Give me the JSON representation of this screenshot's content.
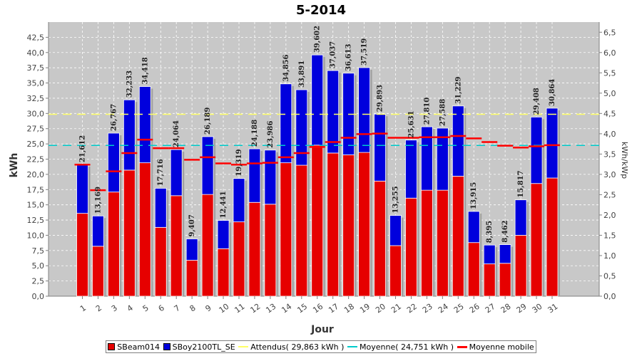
{
  "chart_data": {
    "type": "bar",
    "title": "5-2014",
    "xlabel": "Jour",
    "ylabel": "kWh",
    "ylabel_right": "kWh/kWp",
    "ylim": [
      0,
      45
    ],
    "ylim_right": [
      0,
      6.75
    ],
    "y_ticks": [
      "0,0",
      "2,5",
      "5,0",
      "7,5",
      "10,0",
      "12,5",
      "15,0",
      "17,5",
      "20,0",
      "22,5",
      "25,0",
      "27,5",
      "30,0",
      "32,5",
      "35,0",
      "37,5",
      "40,0",
      "42,5"
    ],
    "y_ticks_right": [
      "0,0",
      "0,5",
      "1,0",
      "1,5",
      "2,0",
      "2,5",
      "3,0",
      "3,5",
      "4,0",
      "4,5",
      "5,0",
      "5,5",
      "6,0",
      "6,5"
    ],
    "categories": [
      "1",
      "2",
      "3",
      "4",
      "5",
      "6",
      "7",
      "8",
      "9",
      "10",
      "11",
      "12",
      "13",
      "14",
      "15",
      "16",
      "17",
      "18",
      "19",
      "20",
      "21",
      "22",
      "23",
      "24",
      "25",
      "26",
      "27",
      "28",
      "29",
      "30",
      "31"
    ],
    "series": [
      {
        "name": "SBeam014",
        "color": "#e60000",
        "values": [
          13.6,
          8.2,
          17.1,
          20.7,
          21.9,
          11.3,
          16.5,
          5.9,
          16.7,
          7.8,
          12.2,
          15.4,
          15.1,
          21.9,
          21.5,
          24.8,
          23.5,
          23.2,
          23.6,
          18.9,
          8.3,
          16.1,
          17.4,
          17.4,
          19.7,
          8.8,
          5.3,
          5.4,
          10.0,
          18.5,
          19.4
        ]
      },
      {
        "name": "SBoy2100TL_SE",
        "color": "#0000dd",
        "values": [
          8.012,
          4.969,
          9.667,
          11.533,
          12.518,
          6.416,
          7.564,
          3.507,
          9.489,
          4.641,
          7.119,
          8.788,
          8.886,
          12.956,
          12.391,
          14.802,
          13.537,
          13.413,
          13.919,
          10.993,
          4.955,
          9.531,
          10.41,
          10.188,
          11.529,
          5.115,
          3.095,
          3.062,
          5.817,
          10.908,
          11.464
        ]
      }
    ],
    "totals": [
      "21,612",
      "13,169",
      "26,767",
      "32,233",
      "34,418",
      "17,716",
      "24,064",
      "9,407",
      "26,189",
      "12,441",
      "19,319",
      "24,188",
      "23,986",
      "34,856",
      "33,891",
      "39,602",
      "37,037",
      "36,613",
      "37,519",
      "29,893",
      "13,255",
      "25,631",
      "27,810",
      "27,588",
      "31,229",
      "13,915",
      "8,395",
      "8,462",
      "15,817",
      "29,408",
      "30,864"
    ],
    "moving_average": {
      "name": "Moyenne mobile",
      "color": "#ff0000",
      "values": [
        21.6,
        17.4,
        20.5,
        23.5,
        25.7,
        24.3,
        24.3,
        22.4,
        22.8,
        21.8,
        21.6,
        21.8,
        21.9,
        22.8,
        23.5,
        24.5,
        25.3,
        26.0,
        26.6,
        26.7,
        26.0,
        26.0,
        26.1,
        26.1,
        26.3,
        25.9,
        25.3,
        24.7,
        24.4,
        24.6,
        24.8
      ]
    },
    "expected": {
      "name": "Attendus( 29,863 kWh )",
      "color": "#ffff66",
      "value": 29.863
    },
    "average": {
      "name": "Moyenne( 24,751 kWh )",
      "color": "#00cccc",
      "value": 24.751
    },
    "grid": true,
    "legend_position": "bottom",
    "plot_background": "#c8c8c8"
  }
}
